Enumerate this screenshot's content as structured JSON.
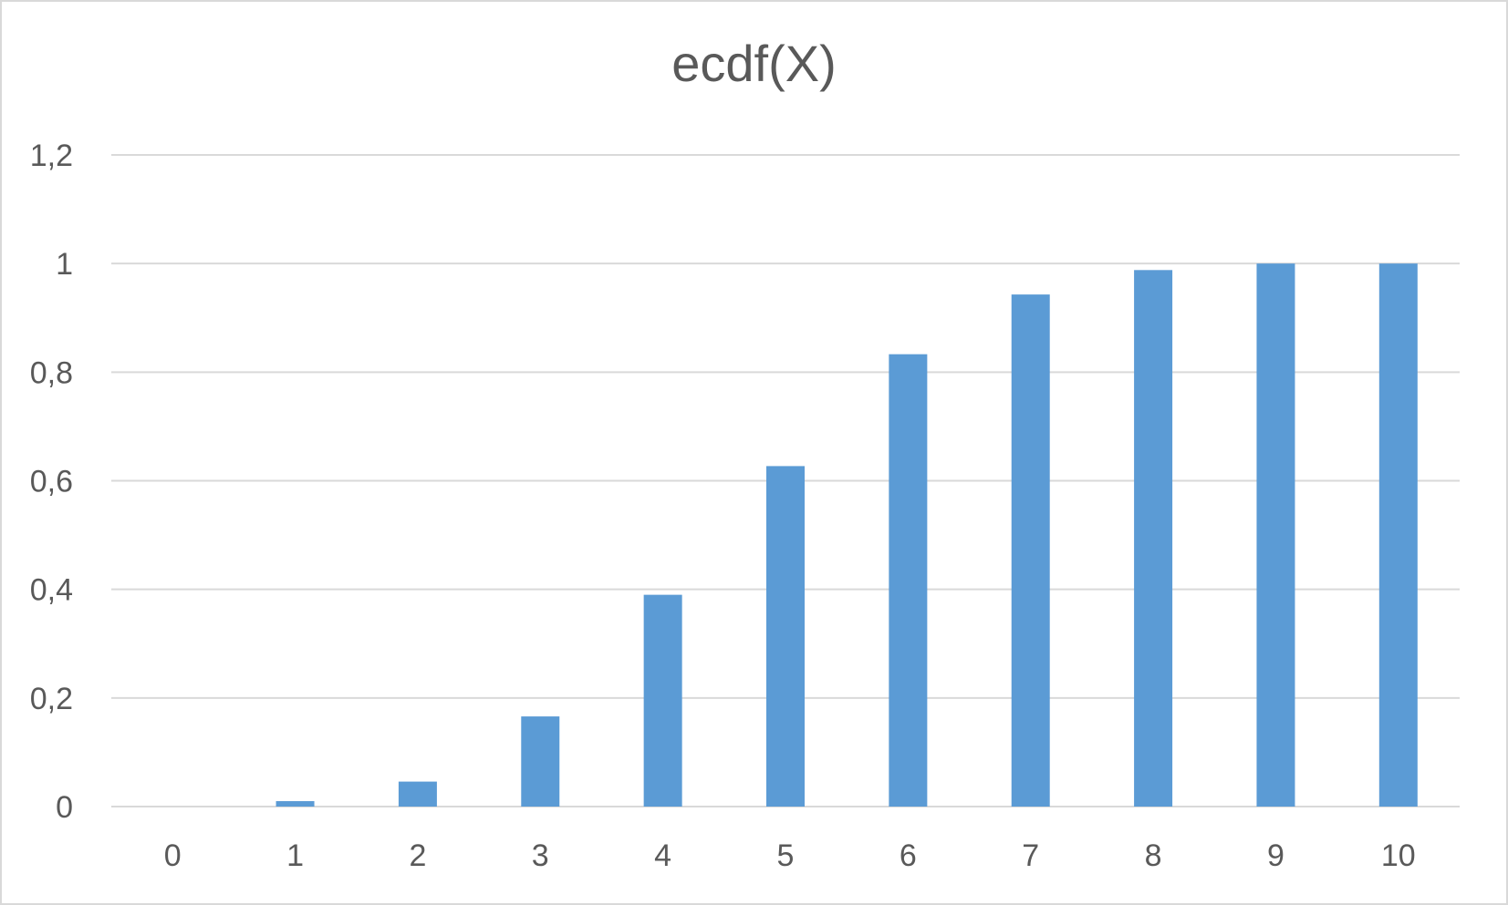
{
  "chart_data": {
    "type": "bar",
    "title": "ecdf(X)",
    "xlabel": "",
    "ylabel": "",
    "categories": [
      "0",
      "1",
      "2",
      "3",
      "4",
      "5",
      "6",
      "7",
      "8",
      "9",
      "10"
    ],
    "values": [
      0,
      0.01,
      0.046,
      0.166,
      0.39,
      0.627,
      0.833,
      0.943,
      0.988,
      1.0,
      1.0
    ],
    "ylim": [
      0,
      1.2
    ],
    "yticks": [
      "0",
      "0,2",
      "0,4",
      "0,6",
      "0,8",
      "1",
      "1,2"
    ],
    "grid": true,
    "legend": "none",
    "bar_color": "#5b9bd5",
    "gridline_color": "#d9d9d9"
  }
}
